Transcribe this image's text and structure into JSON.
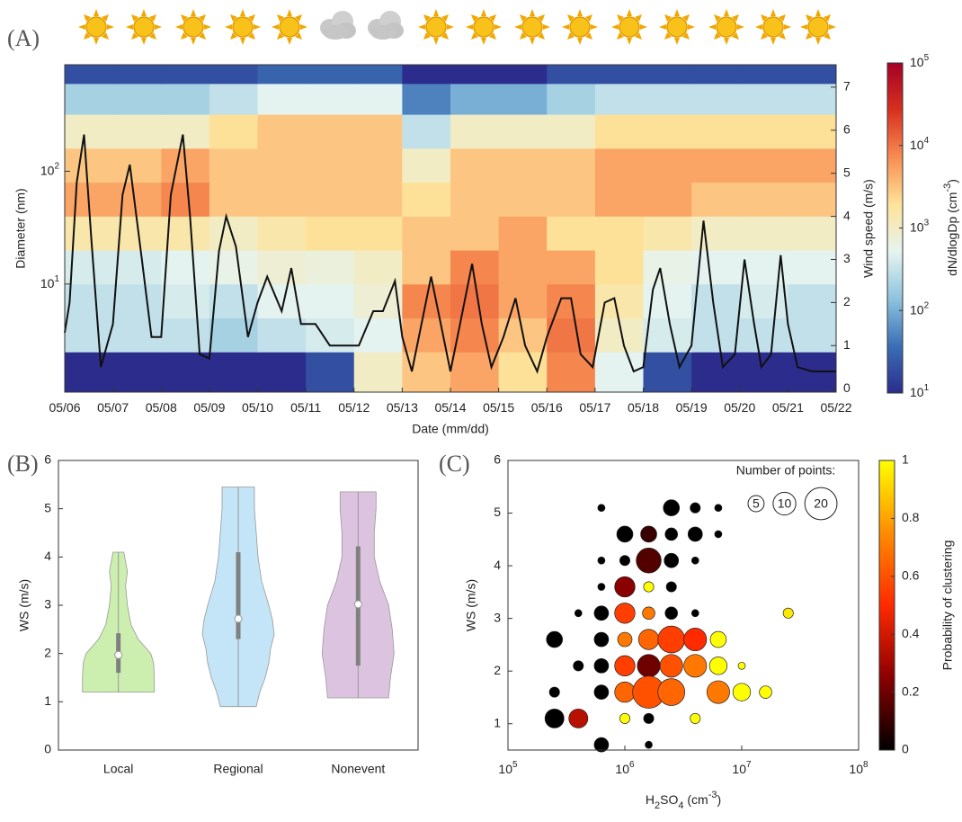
{
  "chart_data": [
    {
      "type": "heatmap",
      "panel_label": "(A)",
      "ylabel": "Diameter (nm)",
      "y2label": "Wind speed (m/s)",
      "xlabel": "Date (mm/dd)",
      "zlabel": [
        {
          "text": "dN/dlogDp (cm"
        },
        {
          "text": "-3",
          "shift": "sup"
        },
        {
          "text": ")"
        }
      ],
      "xlim": [
        0,
        16
      ],
      "xticks": [
        {
          "value": 0,
          "label": "05/06"
        },
        {
          "value": 1,
          "label": "05/07"
        },
        {
          "value": 2,
          "label": "05/08"
        },
        {
          "value": 3,
          "label": "05/09"
        },
        {
          "value": 4,
          "label": "05/10"
        },
        {
          "value": 5,
          "label": "05/11"
        },
        {
          "value": 6,
          "label": "05/12"
        },
        {
          "value": 7,
          "label": "05/13"
        },
        {
          "value": 8,
          "label": "05/14"
        },
        {
          "value": 9,
          "label": "05/15"
        },
        {
          "value": 10,
          "label": "05/16"
        },
        {
          "value": 11,
          "label": "05/17"
        },
        {
          "value": 12,
          "label": "05/18"
        },
        {
          "value": 13,
          "label": "05/19"
        },
        {
          "value": 14,
          "label": "05/20"
        },
        {
          "value": 15,
          "label": "05/21"
        },
        {
          "value": 16,
          "label": "05/22"
        }
      ],
      "ylim": [
        1.1,
        880
      ],
      "yscale": "log",
      "yticks": [
        {
          "value": 10,
          "label": "10",
          "sup": "1"
        },
        {
          "value": 100,
          "label": "10",
          "sup": "2"
        }
      ],
      "y2lim": [
        -0.08,
        7.52
      ],
      "y2ticks": [
        0,
        1,
        2,
        3,
        4,
        5,
        6,
        7
      ],
      "zlim": [
        10,
        100000
      ],
      "zscale": "log",
      "zticks": [
        {
          "value": 10,
          "label": "10",
          "sup": "1"
        },
        {
          "value": 100,
          "label": "10",
          "sup": "2"
        },
        {
          "value": 1000,
          "label": "10",
          "sup": "3"
        },
        {
          "value": 10000,
          "label": "10",
          "sup": "4"
        },
        {
          "value": 100000,
          "label": "10",
          "sup": "5"
        }
      ],
      "colormap": [
        "#2b2c8c",
        "#3a6fb5",
        "#8ec4de",
        "#e6f4f0",
        "#fee39a",
        "#f88d52",
        "#d7301f",
        "#a50026"
      ],
      "heatmap": {
        "x_edges": [
          0,
          1,
          2,
          3,
          4,
          5,
          6,
          7,
          8,
          9,
          10,
          11,
          12,
          13,
          14,
          15,
          16
        ],
        "y_edges": [
          1.1,
          2.5,
          5,
          10,
          20,
          40,
          80,
          160,
          320,
          600,
          880
        ],
        "values": [
          [
            10,
            10,
            10,
            10,
            10,
            20,
            1000,
            3000,
            5000,
            2000,
            8000,
            500,
            20,
            10,
            10,
            10
          ],
          [
            300,
            300,
            300,
            200,
            300,
            400,
            500,
            5000,
            8000,
            3000,
            10000,
            1000,
            400,
            300,
            300,
            300
          ],
          [
            300,
            300,
            400,
            300,
            500,
            500,
            800,
            8000,
            10000,
            5000,
            8000,
            1500,
            500,
            300,
            400,
            300
          ],
          [
            400,
            400,
            500,
            600,
            800,
            700,
            1000,
            3000,
            8000,
            5000,
            5000,
            2000,
            600,
            500,
            500,
            500
          ],
          [
            1500,
            1500,
            1500,
            1000,
            1500,
            2000,
            2000,
            3000,
            3000,
            5000,
            2000,
            2000,
            1500,
            1000,
            1000,
            1000
          ],
          [
            5000,
            5000,
            8000,
            3000,
            3000,
            3000,
            3000,
            2000,
            3000,
            3000,
            3000,
            5000,
            5000,
            3000,
            3000,
            3000
          ],
          [
            3000,
            3000,
            5000,
            3000,
            3000,
            3000,
            3000,
            1000,
            3000,
            3000,
            3000,
            5000,
            5000,
            5000,
            5000,
            5000
          ],
          [
            1000,
            1000,
            1000,
            2000,
            3000,
            3000,
            3000,
            300,
            1000,
            1000,
            1000,
            2000,
            2000,
            2000,
            2000,
            2000
          ],
          [
            200,
            200,
            200,
            300,
            500,
            500,
            500,
            50,
            100,
            100,
            200,
            300,
            300,
            300,
            300,
            300
          ],
          [
            20,
            20,
            20,
            20,
            30,
            30,
            30,
            10,
            10,
            10,
            20,
            20,
            20,
            20,
            20,
            20
          ]
        ]
      },
      "series": [
        {
          "color": "#111111",
          "axis": "y2",
          "x": [
            0,
            0.1,
            0.25,
            0.4,
            0.55,
            0.75,
            1,
            1.2,
            1.35,
            1.6,
            1.8,
            2,
            2.2,
            2.45,
            2.6,
            2.8,
            3,
            3.2,
            3.35,
            3.55,
            3.8,
            4,
            4.2,
            4.5,
            4.7,
            4.9,
            5.2,
            5.5,
            5.8,
            6.1,
            6.4,
            6.6,
            6.85,
            7,
            7.2,
            7.4,
            7.6,
            7.8,
            8,
            8.2,
            8.45,
            8.65,
            8.85,
            9.1,
            9.35,
            9.55,
            9.8,
            10,
            10.3,
            10.5,
            10.7,
            10.95,
            11.2,
            11.4,
            11.6,
            11.8,
            12,
            12.2,
            12.35,
            12.55,
            12.75,
            13,
            13.25,
            13.45,
            13.65,
            13.9,
            14.1,
            14.3,
            14.45,
            14.65,
            14.85,
            15,
            15.2,
            15.5,
            16
          ],
          "values": [
            1.3,
            2,
            4.8,
            5.9,
            3.5,
            0.5,
            1.5,
            4.5,
            5.2,
            3,
            1.2,
            1.2,
            4.5,
            5.9,
            4,
            0.8,
            0.7,
            3.2,
            4,
            3.3,
            1.2,
            2,
            2.6,
            1.8,
            2.8,
            1.5,
            1.5,
            1,
            1,
            1,
            1.8,
            1.8,
            2.5,
            1.2,
            0.4,
            1.5,
            2.6,
            1.5,
            0.4,
            1.5,
            2.9,
            1.5,
            0.5,
            1.2,
            2.1,
            1,
            0.4,
            1.2,
            2.1,
            2.1,
            0.8,
            0.5,
            2,
            2.1,
            1,
            0.4,
            0.5,
            2.3,
            2.8,
            1.5,
            0.5,
            1,
            3.9,
            2,
            0.5,
            0.8,
            3,
            1.5,
            0.5,
            0.8,
            3.1,
            1.5,
            0.5,
            0.4,
            0.4
          ]
        }
      ]
    },
    {
      "type": "violin",
      "panel_label": "(B)",
      "ylabel": "WS (m/s)",
      "categories": [
        "Local",
        "Regional",
        "Nonevent"
      ],
      "ylim": [
        0,
        6
      ],
      "yticks": [
        0,
        1,
        2,
        3,
        4,
        5,
        6
      ],
      "series": [
        {
          "color": "#ccefb0",
          "min": 1.2,
          "q1": 1.6,
          "median": 1.97,
          "q3": 2.42,
          "max": 4.1,
          "violin_y": [
            1.2,
            1.5,
            1.8,
            2,
            2.3,
            2.6,
            3,
            3.4,
            3.7,
            3.9,
            4.1
          ],
          "violin_width": [
            1,
            1,
            0.98,
            0.9,
            0.55,
            0.35,
            0.25,
            0.2,
            0.25,
            0.2,
            0.15
          ]
        },
        {
          "color": "#c3e5f7",
          "min": 0.9,
          "q1": 2.3,
          "median": 2.72,
          "q3": 4.1,
          "max": 5.45,
          "violin_y": [
            0.9,
            1.2,
            1.5,
            1.8,
            2.1,
            2.4,
            2.7,
            3,
            3.5,
            4,
            4.5,
            5,
            5.45
          ],
          "violin_width": [
            0.5,
            0.6,
            0.75,
            0.85,
            0.9,
            1,
            0.95,
            0.85,
            0.65,
            0.55,
            0.5,
            0.45,
            0.45
          ]
        },
        {
          "color": "#dcc3df",
          "min": 1.08,
          "q1": 1.75,
          "median": 3.02,
          "q3": 4.22,
          "max": 5.35,
          "violin_y": [
            1.08,
            1.5,
            2,
            2.5,
            3,
            3.5,
            4,
            4.5,
            5,
            5.35
          ],
          "violin_width": [
            0.85,
            0.9,
            1,
            0.95,
            0.85,
            0.6,
            0.45,
            0.45,
            0.5,
            0.5
          ]
        }
      ]
    },
    {
      "type": "bubble",
      "panel_label": "(C)",
      "ylabel": "WS (m/s)",
      "xlabel": [
        {
          "text": "H"
        },
        {
          "text": "2",
          "shift": "sub"
        },
        {
          "text": "SO"
        },
        {
          "text": "4",
          "shift": "sub"
        },
        {
          "text": " (cm"
        },
        {
          "text": "-3",
          "shift": "sup"
        },
        {
          "text": ")"
        }
      ],
      "xlim": [
        100000,
        100000000
      ],
      "xscale": "log",
      "xticks": [
        {
          "value": 100000,
          "label": "10",
          "sup": "5"
        },
        {
          "value": 1000000,
          "label": "10",
          "sup": "6"
        },
        {
          "value": 10000000,
          "label": "10",
          "sup": "7"
        },
        {
          "value": 100000000,
          "label": "10",
          "sup": "8"
        }
      ],
      "ylim": [
        0.5,
        6
      ],
      "yticks": [
        1,
        2,
        3,
        4,
        5,
        6
      ],
      "zlabel": "Probability of clustering",
      "zlim": [
        0,
        1
      ],
      "zticks": [
        0,
        0.2,
        0.4,
        0.6,
        0.8,
        1
      ],
      "colormap": [
        "#000000",
        "#8b0000",
        "#ff2a00",
        "#ff8c00",
        "#ffff00"
      ],
      "size_legend": {
        "title": "Number of points:",
        "sizes": [
          5,
          10,
          20
        ]
      },
      "points": {
        "x": [
          630000,
          2500000,
          4000000,
          6300000,
          1000000,
          1600000,
          2500000,
          4000000,
          6300000,
          630000,
          1000000,
          1600000,
          2500000,
          4000000,
          630000,
          1000000,
          1600000,
          2500000,
          400000,
          630000,
          1000000,
          1600000,
          2500000,
          4000000,
          25000000,
          250000,
          630000,
          1000000,
          1600000,
          2500000,
          4000000,
          6300000,
          400000,
          630000,
          1000000,
          1600000,
          2500000,
          4000000,
          6300000,
          10000000,
          250000,
          630000,
          1000000,
          1600000,
          2500000,
          6300000,
          10000000,
          16000000,
          250000,
          400000,
          1000000,
          1600000,
          4000000,
          630000,
          1600000
        ],
        "y": [
          5.1,
          5.1,
          5.1,
          5.1,
          4.6,
          4.6,
          4.6,
          4.6,
          4.6,
          4.1,
          4.1,
          4.1,
          4.1,
          4.1,
          3.6,
          3.6,
          3.6,
          3.6,
          3.1,
          3.1,
          3.1,
          3.1,
          3.1,
          3.1,
          3.1,
          2.6,
          2.6,
          2.6,
          2.6,
          2.6,
          2.6,
          2.6,
          2.1,
          2.1,
          2.1,
          2.1,
          2.1,
          2.1,
          2.1,
          2.1,
          1.6,
          1.6,
          1.6,
          1.6,
          1.6,
          1.6,
          1.6,
          1.6,
          1.1,
          1.1,
          1.1,
          1.1,
          1.1,
          0.6,
          0.6
        ],
        "sizes": [
          1,
          5,
          2,
          1,
          5,
          5,
          3,
          4,
          1,
          1,
          2,
          12,
          4,
          1,
          1,
          8,
          2,
          2,
          1,
          4,
          8,
          3,
          3,
          1,
          2,
          5,
          4,
          4,
          8,
          14,
          10,
          5,
          2,
          4,
          8,
          10,
          10,
          10,
          6,
          1,
          2,
          4,
          8,
          20,
          14,
          10,
          6,
          3,
          7,
          7,
          2,
          2,
          2,
          4,
          1
        ],
        "probability": [
          0,
          0,
          0,
          0,
          0,
          0.1,
          0,
          0,
          0,
          0,
          0,
          0.15,
          0,
          0,
          0,
          0.25,
          1,
          0,
          0,
          0,
          0.55,
          0.7,
          0,
          0,
          0.95,
          0,
          0,
          0.7,
          0.65,
          0.55,
          0.5,
          1,
          0,
          0,
          0.55,
          0.2,
          0.6,
          0.7,
          1,
          1,
          0,
          0,
          0.65,
          0.6,
          0.65,
          0.7,
          1,
          1,
          0,
          0.35,
          1,
          0,
          1,
          0,
          0
        ]
      }
    }
  ]
}
